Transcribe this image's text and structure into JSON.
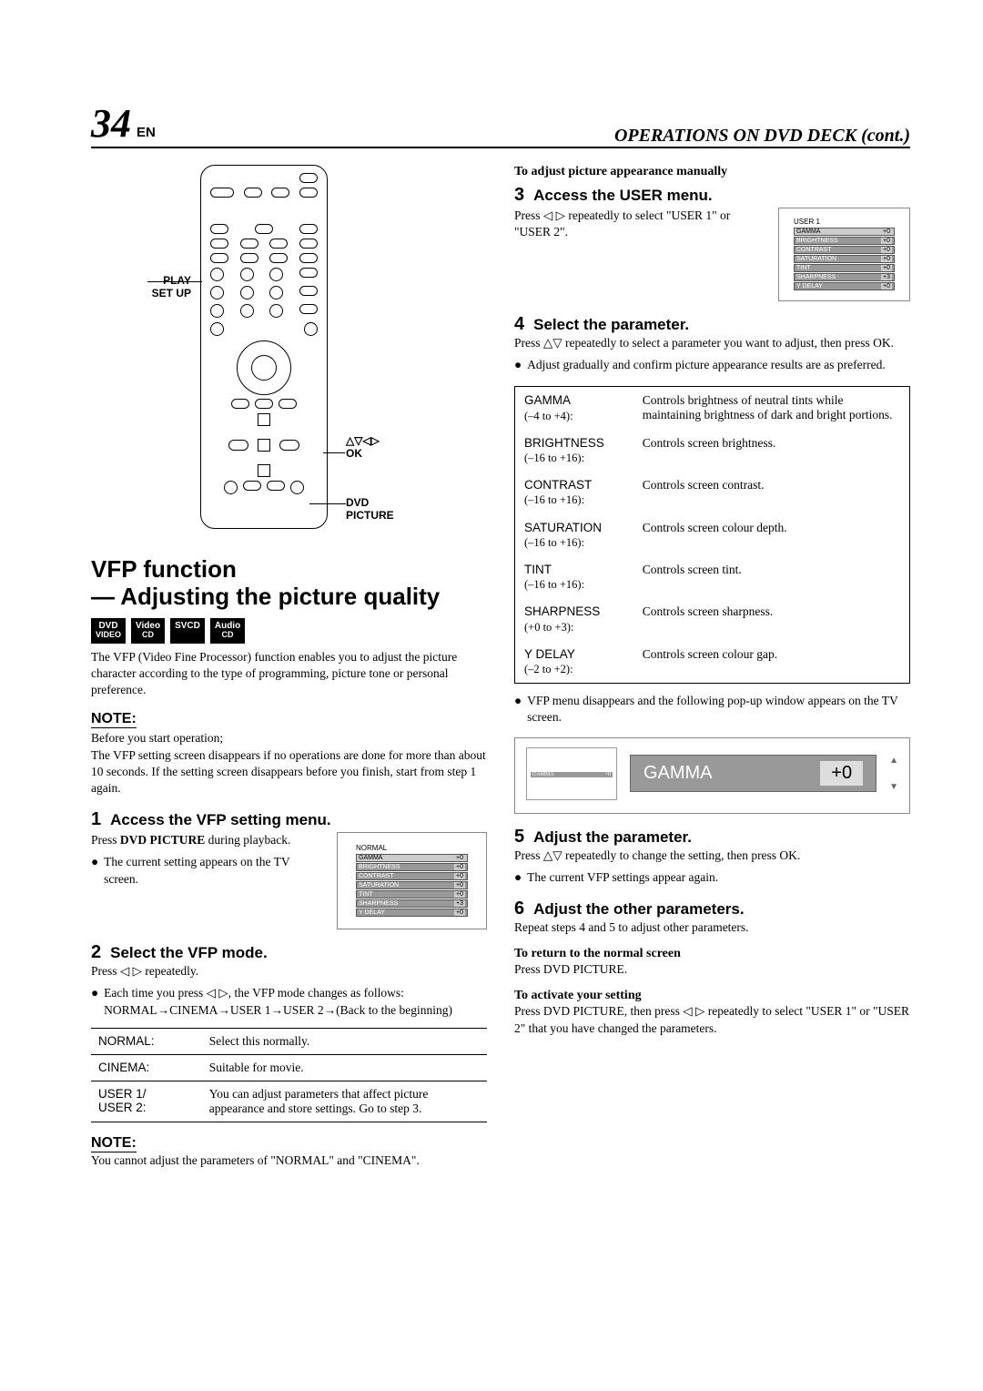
{
  "header": {
    "page_number": "34",
    "lang": "EN",
    "section_title": "OPERATIONS ON DVD DECK (cont.)"
  },
  "remote_labels": {
    "play_setup": "PLAY\nSET UP",
    "ok": "OK",
    "dvd_picture": "DVD\nPICTURE",
    "arrows": "△▽◁▷"
  },
  "left": {
    "main_title_1": "VFP function",
    "main_title_2": "— Adjusting the picture quality",
    "badges": [
      {
        "line1": "DVD",
        "line2": "VIDEO"
      },
      {
        "line1": "Video",
        "line2": "CD"
      },
      {
        "line1": "SVCD",
        "line2": ""
      },
      {
        "line1": "Audio",
        "line2": "CD"
      }
    ],
    "intro": "The VFP (Video Fine Processor) function enables you to adjust the picture character according to the type of programming, picture tone or personal preference.",
    "note_label": "NOTE:",
    "note_before": "Before you start operation;",
    "note_body": "The VFP setting screen disappears if no operations are done for more than about 10 seconds. If the setting screen disappears before you finish, start from step 1 again.",
    "step1": {
      "num": "1",
      "title": "Access the VFP setting menu.",
      "line1_a": "Press ",
      "line1_b": "DVD PICTURE",
      "line1_c": " during playback.",
      "bullet": "The current setting appears on the TV screen."
    },
    "vfp_thumb_title": "NORMAL",
    "vfp_rows": [
      {
        "n": "GAMMA",
        "v": "+0",
        "sel": true
      },
      {
        "n": "BRIGHTNESS",
        "v": "+0"
      },
      {
        "n": "CONTRAST",
        "v": "+0"
      },
      {
        "n": "SATURATION",
        "v": "+0"
      },
      {
        "n": "TINT",
        "v": "+0"
      },
      {
        "n": "SHARPNESS",
        "v": "+3"
      },
      {
        "n": "Y DELAY",
        "v": "+0"
      }
    ],
    "step2": {
      "num": "2",
      "title": "Select the VFP mode.",
      "line1": "Press ◁ ▷ repeatedly.",
      "bullet": "Each time you press ◁ ▷, the VFP mode changes as follows: NORMAL→CINEMA→USER 1→USER 2→(Back to the beginning)"
    },
    "modes": [
      {
        "name": "NORMAL:",
        "desc": "Select this normally."
      },
      {
        "name": "CINEMA:",
        "desc": "Suitable for movie."
      },
      {
        "name": "USER 1/\nUSER 2:",
        "desc": "You can adjust parameters that affect picture appearance and store settings. Go to step 3."
      }
    ],
    "note2_label": "NOTE:",
    "note2_body": "You cannot adjust the parameters of \"NORMAL\" and \"CINEMA\"."
  },
  "right": {
    "subhead_adjust": "To adjust picture appearance manually",
    "step3": {
      "num": "3",
      "title": "Access the USER menu.",
      "line1": "Press ◁ ▷ repeatedly to select \"USER 1\" or \"USER 2\"."
    },
    "user_thumb_title": "USER 1",
    "step4": {
      "num": "4",
      "title": "Select the parameter.",
      "line1": "Press △▽ repeatedly to select a parameter you want to adjust, then press OK.",
      "bullet": "Adjust gradually and confirm picture appearance results are as preferred."
    },
    "params": [
      {
        "name": "GAMMA",
        "range": "(–4 to +4):",
        "desc": "Controls brightness of neutral tints while maintaining brightness of dark and bright portions."
      },
      {
        "name": "BRIGHTNESS",
        "range": "(–16 to +16):",
        "desc": "Controls screen brightness."
      },
      {
        "name": "CONTRAST",
        "range": "(–16 to +16):",
        "desc": "Controls screen contrast."
      },
      {
        "name": "SATURATION",
        "range": "(–16 to +16):",
        "desc": "Controls screen colour depth."
      },
      {
        "name": "TINT",
        "range": "(–16 to +16):",
        "desc": "Controls screen tint."
      },
      {
        "name": "SHARPNESS",
        "range": "(+0 to +3):",
        "desc": "Controls screen sharpness."
      },
      {
        "name": "Y DELAY",
        "range": "(–2 to +2):",
        "desc": "Controls screen colour gap."
      }
    ],
    "after_params": "VFP menu disappears and the following pop-up window appears on the TV screen.",
    "popup": {
      "name": "GAMMA",
      "val": "+0",
      "mini_n": "GAMMA",
      "mini_v": "+0"
    },
    "step5": {
      "num": "5",
      "title": "Adjust the parameter.",
      "line1": "Press △▽ repeatedly to change the setting, then press OK.",
      "bullet": "The current VFP settings appear again."
    },
    "step6": {
      "num": "6",
      "title": "Adjust the other parameters.",
      "line1": "Repeat steps 4 and 5 to adjust other parameters."
    },
    "return_head": "To return to the normal screen",
    "return_body": "Press DVD PICTURE.",
    "activate_head": "To activate your setting",
    "activate_body": "Press DVD PICTURE, then press ◁ ▷ repeatedly to select \"USER 1\" or \"USER 2\" that you have changed the parameters."
  }
}
